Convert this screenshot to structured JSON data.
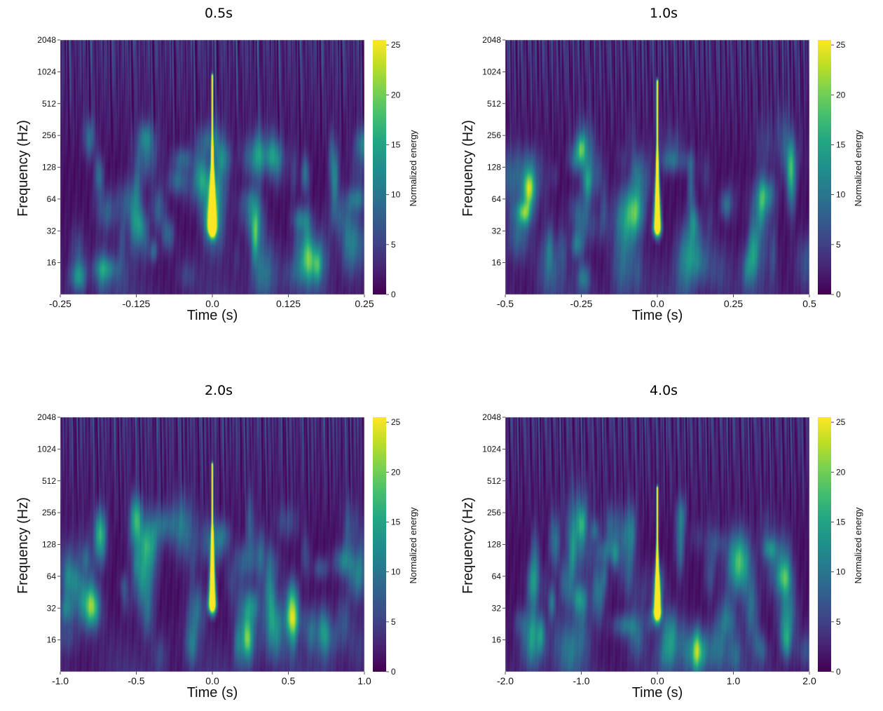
{
  "chart_data": [
    {
      "type": "heatmap",
      "title": "0.5s",
      "xlabel": "Time (s)",
      "ylabel": "Frequency (Hz)",
      "colorbar_label": "Normalized energy",
      "colormap": "viridis",
      "xlim": [
        -0.25,
        0.25
      ],
      "xticks": [
        "-0.25",
        "-0.125",
        "0.0",
        "0.125",
        "0.25"
      ],
      "xtick_values": [
        -0.25,
        -0.125,
        0.0,
        0.125,
        0.25
      ],
      "ylim": [
        8,
        2048
      ],
      "yscale": "log2",
      "yticks": [
        "16",
        "32",
        "64",
        "128",
        "256",
        "512",
        "1024",
        "2048"
      ],
      "ytick_values": [
        16,
        32,
        64,
        128,
        256,
        512,
        1024,
        2048
      ],
      "clim": [
        0,
        25.5
      ],
      "cbticks": [
        "0",
        "5",
        "10",
        "15",
        "20",
        "25"
      ],
      "cbtick_values": [
        0,
        5,
        10,
        15,
        20,
        25
      ],
      "peak": {
        "time": 0.0,
        "freq_low": 35,
        "freq_high": 900,
        "energy": 25.5
      },
      "seed": 11
    },
    {
      "type": "heatmap",
      "title": "1.0s",
      "xlabel": "Time (s)",
      "ylabel": "Frequency (Hz)",
      "colorbar_label": "Normalized energy",
      "colormap": "viridis",
      "xlim": [
        -0.5,
        0.5
      ],
      "xticks": [
        "-0.5",
        "-0.25",
        "0.0",
        "0.25",
        "0.5"
      ],
      "xtick_values": [
        -0.5,
        -0.25,
        0.0,
        0.25,
        0.5
      ],
      "ylim": [
        8,
        2048
      ],
      "yscale": "log2",
      "yticks": [
        "16",
        "32",
        "64",
        "128",
        "256",
        "512",
        "1024",
        "2048"
      ],
      "ytick_values": [
        16,
        32,
        64,
        128,
        256,
        512,
        1024,
        2048
      ],
      "clim": [
        0,
        25.5
      ],
      "cbticks": [
        "0",
        "5",
        "10",
        "15",
        "20",
        "25"
      ],
      "cbtick_values": [
        0,
        5,
        10,
        15,
        20,
        25
      ],
      "peak": {
        "time": 0.0,
        "freq_low": 35,
        "freq_high": 800,
        "energy": 25.5
      },
      "seed": 23
    },
    {
      "type": "heatmap",
      "title": "2.0s",
      "xlabel": "Time (s)",
      "ylabel": "Frequency (Hz)",
      "colorbar_label": "Normalized energy",
      "colormap": "viridis",
      "xlim": [
        -1.0,
        1.0
      ],
      "xticks": [
        "-1.0",
        "-0.5",
        "0.0",
        "0.5",
        "1.0"
      ],
      "xtick_values": [
        -1.0,
        -0.5,
        0.0,
        0.5,
        1.0
      ],
      "ylim": [
        8,
        2048
      ],
      "yscale": "log2",
      "yticks": [
        "16",
        "32",
        "64",
        "128",
        "256",
        "512",
        "1024",
        "2048"
      ],
      "ytick_values": [
        16,
        32,
        64,
        128,
        256,
        512,
        1024,
        2048
      ],
      "clim": [
        0,
        25.5
      ],
      "cbticks": [
        "0",
        "5",
        "10",
        "15",
        "20",
        "25"
      ],
      "cbtick_values": [
        0,
        5,
        10,
        15,
        20,
        25
      ],
      "peak": {
        "time": 0.0,
        "freq_low": 35,
        "freq_high": 700,
        "energy": 25.5
      },
      "seed": 37
    },
    {
      "type": "heatmap",
      "title": "4.0s",
      "xlabel": "Time (s)",
      "ylabel": "Frequency (Hz)",
      "colorbar_label": "Normalized energy",
      "colormap": "viridis",
      "xlim": [
        -2.0,
        2.0
      ],
      "xticks": [
        "-2.0",
        "-1.0",
        "0.0",
        "1.0",
        "2.0"
      ],
      "xtick_values": [
        -2.0,
        -1.0,
        0.0,
        1.0,
        2.0
      ],
      "ylim": [
        8,
        2048
      ],
      "yscale": "log2",
      "yticks": [
        "16",
        "32",
        "64",
        "128",
        "256",
        "512",
        "1024",
        "2048"
      ],
      "ytick_values": [
        16,
        32,
        64,
        128,
        256,
        512,
        1024,
        2048
      ],
      "clim": [
        0,
        25.5
      ],
      "cbticks": [
        "0",
        "5",
        "10",
        "15",
        "20",
        "25"
      ],
      "cbtick_values": [
        0,
        5,
        10,
        15,
        20,
        25
      ],
      "peak": {
        "time": 0.0,
        "freq_low": 30,
        "freq_high": 420,
        "energy": 25.5
      },
      "seed": 53
    }
  ]
}
